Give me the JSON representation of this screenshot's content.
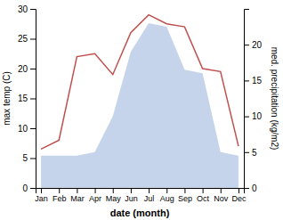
{
  "chart_data": {
    "type": "line",
    "x_label": "date (month)",
    "y_label": "max temp (C)",
    "y2_label": "med. precipitation (kg/m2)",
    "categories": [
      "Jan",
      "Feb",
      "Mar",
      "Apr",
      "May",
      "Jun",
      "Jul",
      "Aug",
      "Sep",
      "Oct",
      "Nov",
      "Dec"
    ],
    "ylim": [
      0,
      30
    ],
    "yticks": [
      0,
      5,
      10,
      15,
      20,
      25,
      30
    ],
    "y2lim": [
      0,
      25
    ],
    "y2ticks": [
      0,
      5,
      10,
      15,
      20
    ],
    "series": [
      {
        "type": "area",
        "axis": "y2",
        "color": "#c5d4ea",
        "values": [
          4.5,
          4.5,
          4.5,
          5.0,
          10.0,
          19.0,
          23.0,
          22.5,
          16.5,
          16.0,
          5.0,
          4.5
        ]
      },
      {
        "type": "line",
        "color": "#c0504d",
        "values": [
          6.5,
          8.0,
          22.0,
          22.5,
          19.0,
          26.0,
          29.0,
          27.5,
          27.0,
          20.0,
          19.5,
          7.0
        ]
      }
    ]
  }
}
